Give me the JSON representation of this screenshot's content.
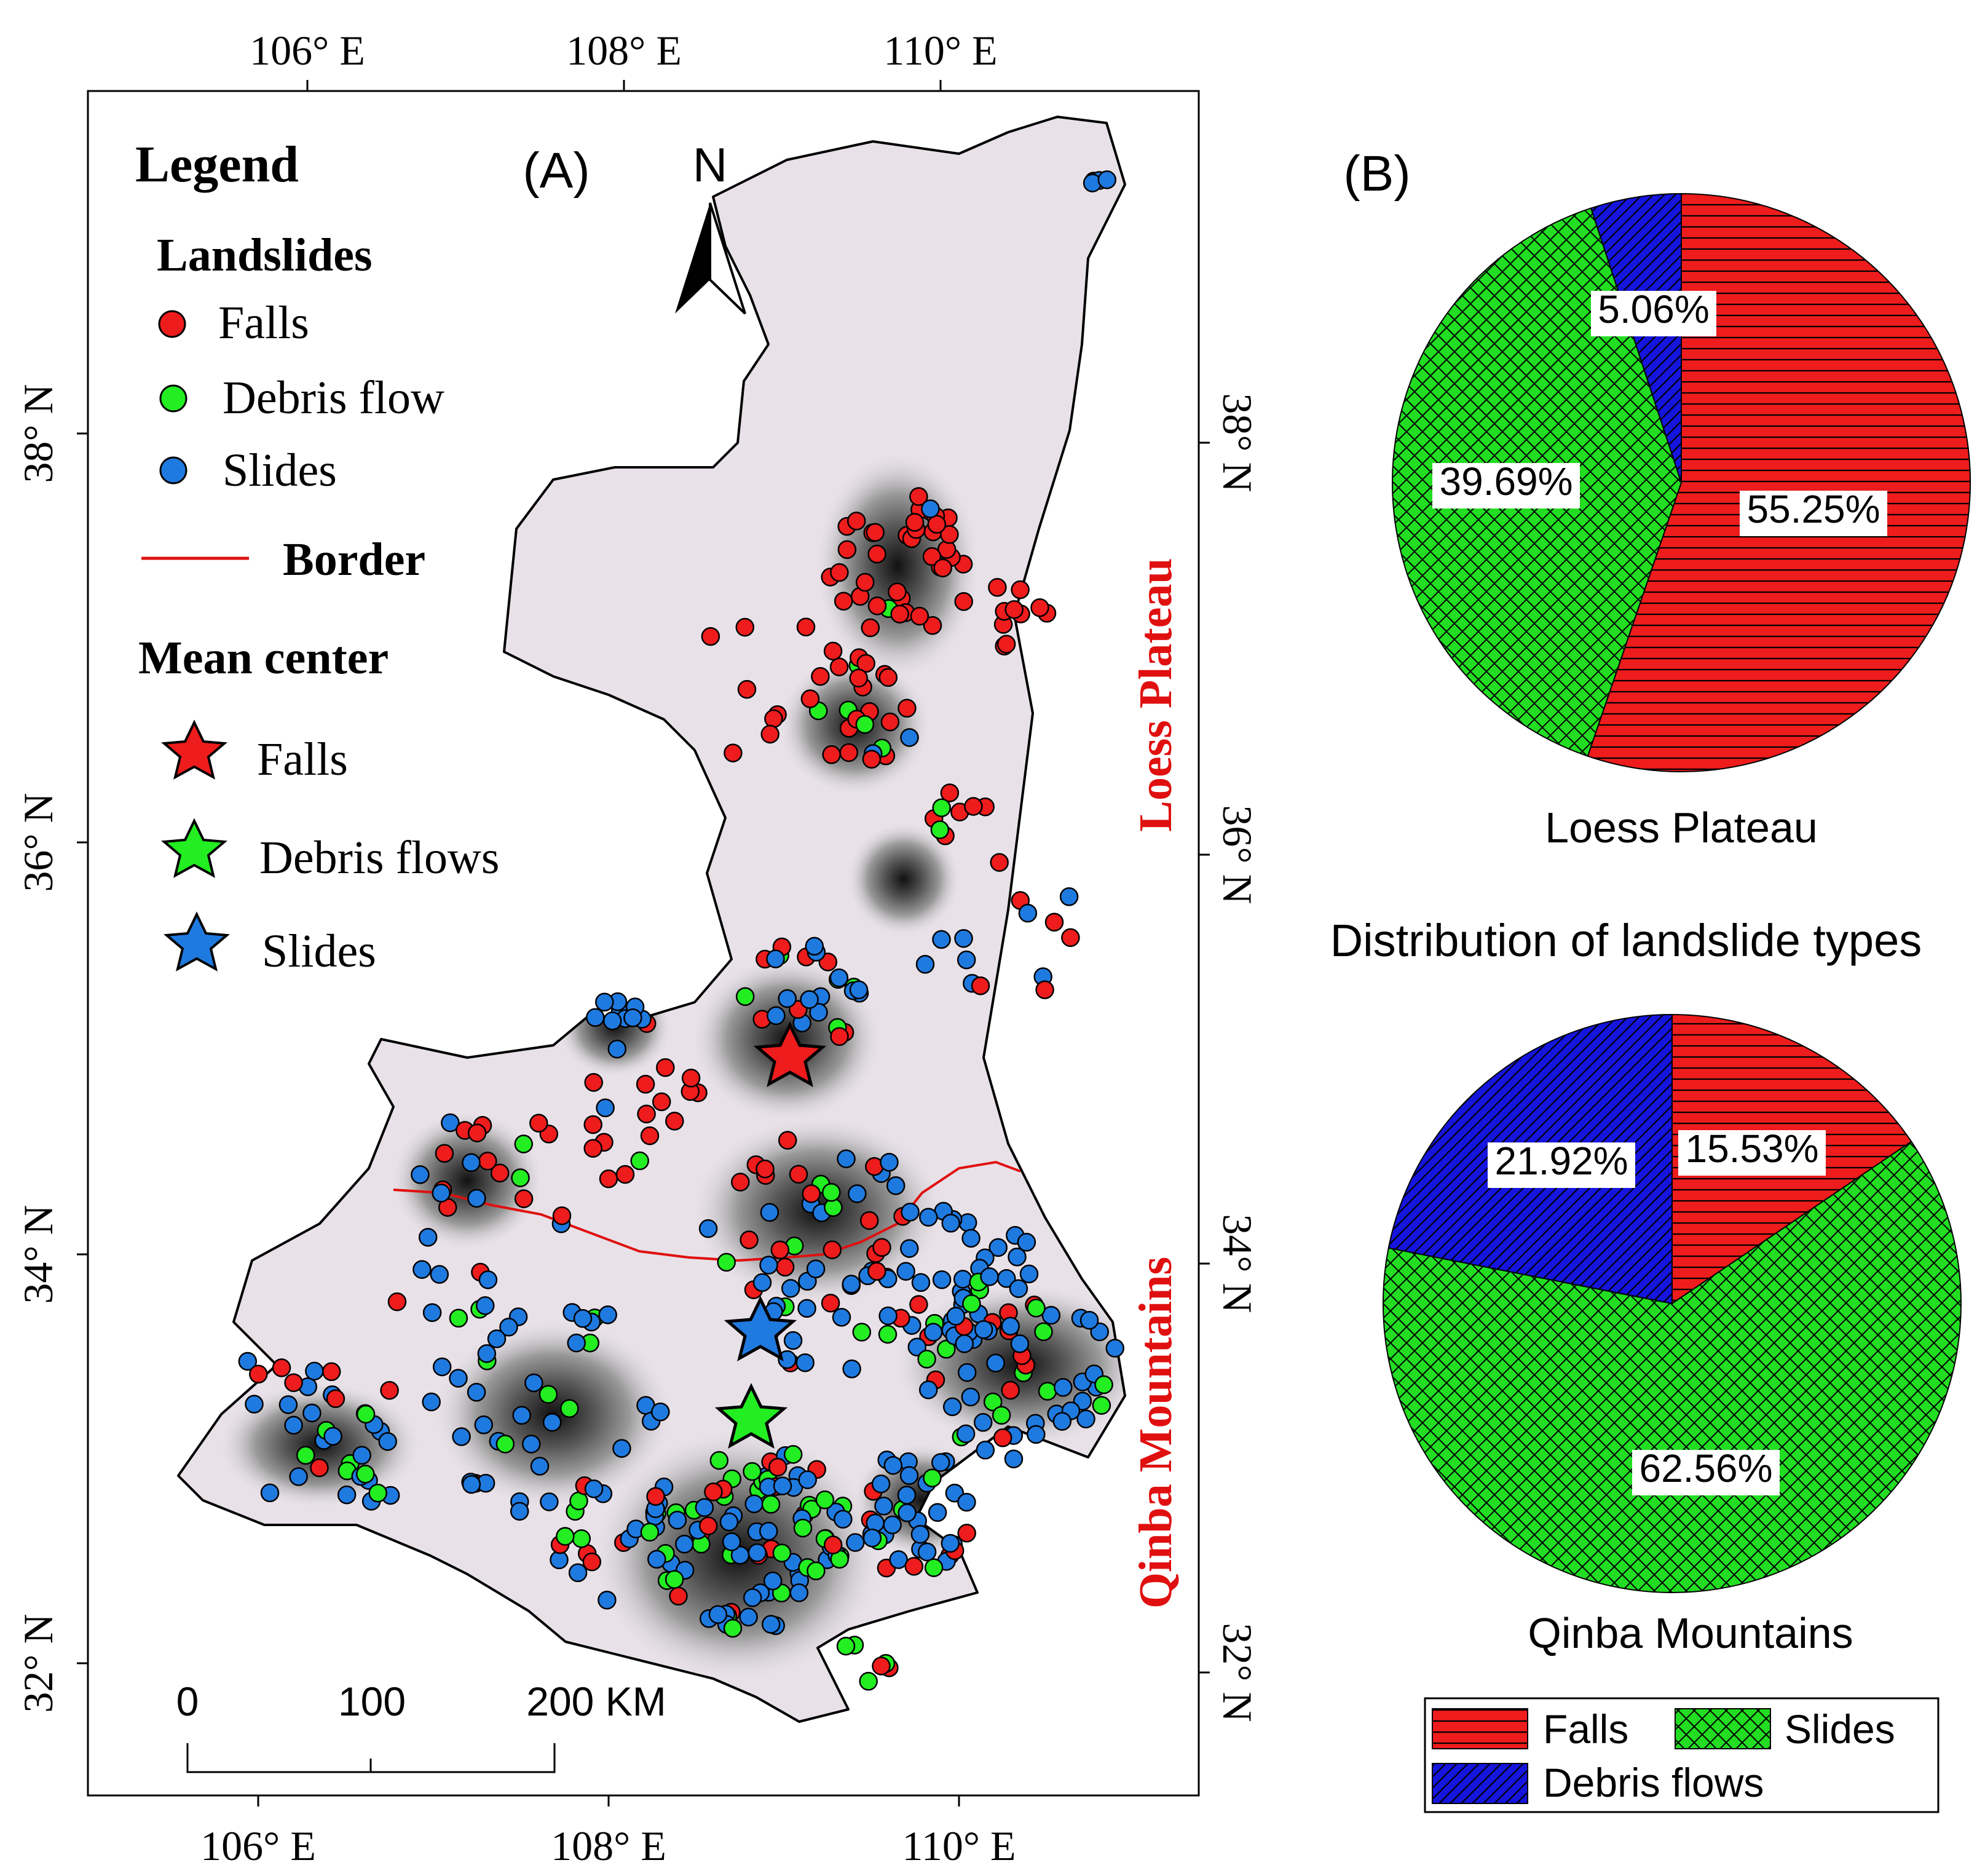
{
  "panel_a": {
    "label": "(A)",
    "north_label": "N",
    "lon_labels": [
      "106° E",
      "108° E",
      "110° E"
    ],
    "lat_labels": [
      "38° N",
      "36° N",
      "34° N",
      "32° N"
    ],
    "region_upper": "Loess Plateau",
    "region_lower": "Qinba Mountains",
    "legend": {
      "title": "Legend",
      "landslides_heading": "Landslides",
      "falls": "Falls",
      "debris_flow": "Debris flow",
      "slides": "Slides",
      "border": "Border",
      "mean_center_heading": "Mean center",
      "mc_falls": "Falls",
      "mc_debris": "Debris flows",
      "mc_slides": "Slides"
    },
    "scale_bar": {
      "t0": "0",
      "t1": "100",
      "t2": "200 KM"
    }
  },
  "chart_data": [
    {
      "type": "pie",
      "panel_label": "(B)",
      "title": "Loess Plateau",
      "slices": [
        {
          "name": "Falls",
          "value": 55.25,
          "label": "55.25%"
        },
        {
          "name": "Slides",
          "value": 39.69,
          "label": "39.69%"
        },
        {
          "name": "Debris flows",
          "value": 5.06,
          "label": "5.06%"
        }
      ]
    },
    {
      "type": "pie",
      "title": "Qinba Mountains",
      "slices": [
        {
          "name": "Falls",
          "value": 15.53,
          "label": "15.53%"
        },
        {
          "name": "Slides",
          "value": 62.56,
          "label": "62.56%"
        },
        {
          "name": "Debris flows",
          "value": 21.92,
          "label": "21.92%"
        }
      ]
    }
  ],
  "chart_common": {
    "heading": "Distribution of landslide types",
    "legend": [
      "Falls",
      "Slides",
      "Debris flows"
    ]
  },
  "colors": {
    "falls": "#ee1c1c",
    "slides": "#22dd22",
    "debris": "#1515dd",
    "dot_slides": "#1f7ae0",
    "dot_debris": "#22ee22",
    "border": "#e01010",
    "region_label": "#e01010"
  }
}
